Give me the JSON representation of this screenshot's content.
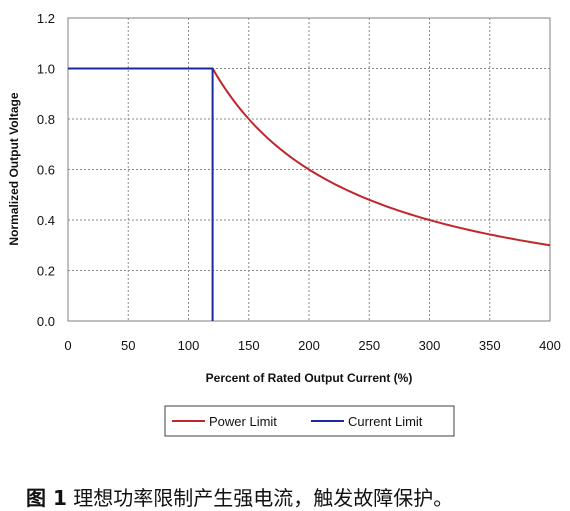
{
  "chart_data": {
    "type": "line",
    "title": "",
    "xlabel": "Percent of Rated Output Current (%)",
    "ylabel": "Normalized Output Voltage",
    "xlim": [
      0,
      400
    ],
    "ylim": [
      0,
      1.2
    ],
    "xticks": [
      0,
      50,
      100,
      150,
      200,
      250,
      300,
      350,
      400
    ],
    "xtick_labels": [
      "0",
      "50",
      "100",
      "150",
      "200",
      "250",
      "300",
      "350",
      "400"
    ],
    "yticks": [
      0,
      0.2,
      0.4,
      0.6,
      0.8,
      1.0,
      1.2
    ],
    "ytick_labels": [
      "0.0",
      "0.2",
      "0.4",
      "0.6",
      "0.8",
      "1.0",
      "1.2"
    ],
    "grid": true,
    "legend_position": "bottom",
    "series": [
      {
        "name": "Power Limit",
        "color": "#c0262c",
        "x": [
          120,
          130,
          140,
          150,
          160,
          175,
          200,
          225,
          250,
          275,
          300,
          325,
          350,
          375,
          400
        ],
        "y": [
          1.0,
          0.923,
          0.857,
          0.8,
          0.75,
          0.686,
          0.6,
          0.533,
          0.48,
          0.436,
          0.4,
          0.369,
          0.343,
          0.32,
          0.3
        ]
      },
      {
        "name": "Current Limit",
        "color": "#1b2a9e",
        "x": [
          0,
          120,
          120
        ],
        "y": [
          1.0,
          1.0,
          0.0
        ]
      }
    ]
  },
  "caption": {
    "figure_number": "图 1",
    "text": "理想功率限制产生强电流，触发故障保护。"
  }
}
